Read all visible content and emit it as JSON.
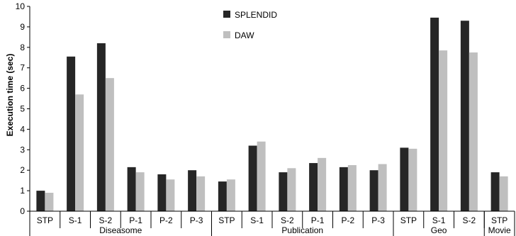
{
  "chart_data": {
    "type": "bar",
    "ylabel": "Execution time (sec)",
    "ylim": [
      0,
      10
    ],
    "yticks": [
      0,
      1,
      2,
      3,
      4,
      5,
      6,
      7,
      8,
      9,
      10
    ],
    "grid": false,
    "legend_position": "top-center",
    "groups": [
      {
        "name": "Diseasome",
        "categories": [
          "STP",
          "S-1",
          "S-2",
          "P-1",
          "P-2",
          "P-3"
        ]
      },
      {
        "name": "Publication",
        "categories": [
          "STP",
          "S-1",
          "S-2",
          "P-1",
          "P-2",
          "P-3"
        ]
      },
      {
        "name": "Geo",
        "categories": [
          "STP",
          "S-1",
          "S-2"
        ]
      },
      {
        "name": "Movie",
        "categories": [
          "STP"
        ]
      }
    ],
    "series": [
      {
        "name": "SPLENDID",
        "color": "#262626",
        "values": [
          1.0,
          7.55,
          8.2,
          2.15,
          1.8,
          2.0,
          1.45,
          3.2,
          1.9,
          2.35,
          2.15,
          2.0,
          3.1,
          9.45,
          9.3,
          1.9
        ]
      },
      {
        "name": "DAW",
        "color": "#bfbfbf",
        "values": [
          0.9,
          5.7,
          6.5,
          1.9,
          1.55,
          1.7,
          1.55,
          3.4,
          2.1,
          2.6,
          2.25,
          2.3,
          3.05,
          7.85,
          7.75,
          1.7
        ]
      }
    ]
  }
}
